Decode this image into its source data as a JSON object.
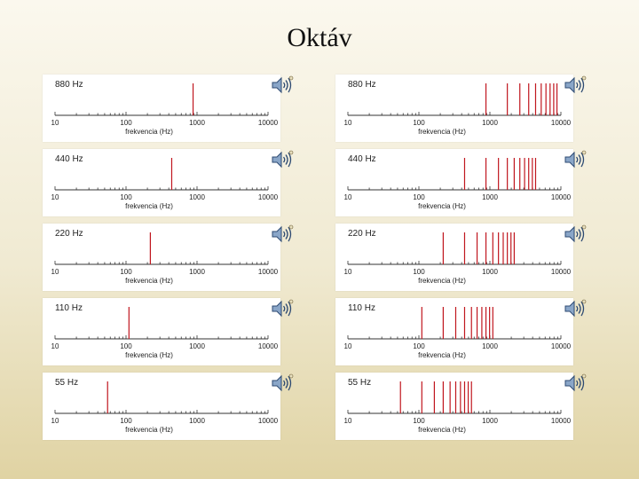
{
  "title": "Oktáv",
  "xlabel": "frekvencia (Hz)",
  "tick_labels": [
    "10",
    "100",
    "1000",
    "10000"
  ],
  "colors": {
    "line": "#c0161e",
    "axis": "#333333"
  },
  "icon": "speaker-sound-icon",
  "chart_data": [
    {
      "type": "bar",
      "label": "880 Hz",
      "xscale": "log",
      "xlim": [
        10,
        10000
      ],
      "xlabel": "frekvencia (Hz)",
      "series": [
        {
          "x": [
            880
          ],
          "values": [
            1
          ]
        }
      ]
    },
    {
      "type": "bar",
      "label": "440 Hz",
      "xscale": "log",
      "xlim": [
        10,
        10000
      ],
      "xlabel": "frekvencia (Hz)",
      "series": [
        {
          "x": [
            440
          ],
          "values": [
            1
          ]
        }
      ]
    },
    {
      "type": "bar",
      "label": "220 Hz",
      "xscale": "log",
      "xlim": [
        10,
        10000
      ],
      "xlabel": "frekvencia (Hz)",
      "series": [
        {
          "x": [
            220
          ],
          "values": [
            1
          ]
        }
      ]
    },
    {
      "type": "bar",
      "label": "110 Hz",
      "xscale": "log",
      "xlim": [
        10,
        10000
      ],
      "xlabel": "frekvencia (Hz)",
      "series": [
        {
          "x": [
            110
          ],
          "values": [
            1
          ]
        }
      ]
    },
    {
      "type": "bar",
      "label": "55 Hz",
      "xscale": "log",
      "xlim": [
        10,
        10000
      ],
      "xlabel": "frekvencia (Hz)",
      "series": [
        {
          "x": [
            55
          ],
          "values": [
            1
          ]
        }
      ]
    },
    {
      "type": "bar",
      "label": "880 Hz",
      "xscale": "log",
      "xlim": [
        10,
        10000
      ],
      "xlabel": "frekvencia (Hz)",
      "series": [
        {
          "x": [
            880,
            1760,
            2640,
            3520,
            4400,
            5280,
            6160,
            7040,
            7920,
            8800
          ],
          "values": [
            1,
            1,
            1,
            1,
            1,
            1,
            1,
            1,
            1,
            1
          ]
        }
      ]
    },
    {
      "type": "bar",
      "label": "440 Hz",
      "xscale": "log",
      "xlim": [
        10,
        10000
      ],
      "xlabel": "frekvencia (Hz)",
      "series": [
        {
          "x": [
            440,
            880,
            1320,
            1760,
            2200,
            2640,
            3080,
            3520,
            3960,
            4400
          ],
          "values": [
            1,
            1,
            1,
            1,
            1,
            1,
            1,
            1,
            1,
            1
          ]
        }
      ]
    },
    {
      "type": "bar",
      "label": "220 Hz",
      "xscale": "log",
      "xlim": [
        10,
        10000
      ],
      "xlabel": "frekvencia (Hz)",
      "series": [
        {
          "x": [
            220,
            440,
            660,
            880,
            1100,
            1320,
            1540,
            1760,
            1980,
            2200
          ],
          "values": [
            1,
            1,
            1,
            1,
            1,
            1,
            1,
            1,
            1,
            1
          ]
        }
      ]
    },
    {
      "type": "bar",
      "label": "110 Hz",
      "xscale": "log",
      "xlim": [
        10,
        10000
      ],
      "xlabel": "frekvencia (Hz)",
      "series": [
        {
          "x": [
            110,
            220,
            330,
            440,
            550,
            660,
            770,
            880,
            990,
            1100
          ],
          "values": [
            1,
            1,
            1,
            1,
            1,
            1,
            1,
            1,
            1,
            1
          ]
        }
      ]
    },
    {
      "type": "bar",
      "label": "55 Hz",
      "xscale": "log",
      "xlim": [
        10,
        10000
      ],
      "xlabel": "frekvencia (Hz)",
      "series": [
        {
          "x": [
            55,
            110,
            165,
            220,
            275,
            330,
            385,
            440,
            495,
            550
          ],
          "values": [
            1,
            1,
            1,
            1,
            1,
            1,
            1,
            1,
            1,
            1
          ]
        }
      ]
    }
  ]
}
